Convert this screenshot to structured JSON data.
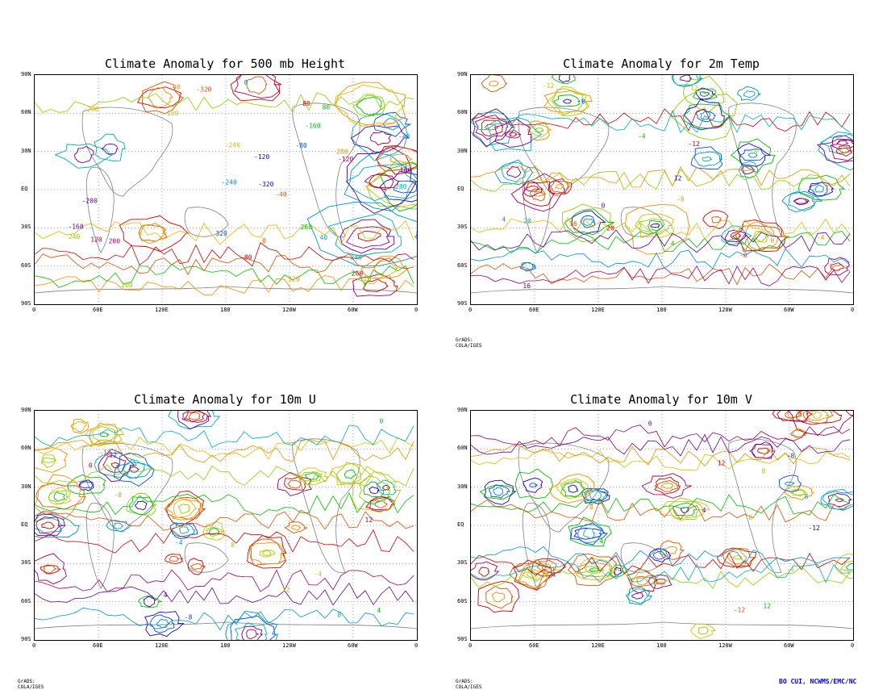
{
  "panels": [
    {
      "title": "Climate Anomaly for 500 mb Height",
      "contour_labels": [
        "80",
        "120",
        "160",
        "40",
        "-40",
        "-80",
        "-120",
        "-160",
        "240",
        "-240",
        "320",
        "-320",
        "260",
        "200",
        "-200",
        "280",
        "0"
      ],
      "palette": [
        "#00c000",
        "#90d000",
        "#d8c000",
        "#f09000",
        "#e05000",
        "#d00000",
        "#a00060",
        "#6000a0",
        "#00b0b0",
        "#0090d0",
        "#0050e0",
        "#2000c0"
      ]
    },
    {
      "title": "Climate Anomaly for 2m Temp",
      "contour_labels": [
        "4",
        "8",
        "12",
        "-4",
        "-8",
        "-12",
        "0",
        "16",
        "20"
      ],
      "palette": [
        "#00c000",
        "#90d000",
        "#d8c000",
        "#f09000",
        "#e05000",
        "#d00000",
        "#a00060",
        "#6000a0",
        "#00b0b0",
        "#0090d0",
        "#0050e0",
        "#2000c0"
      ]
    },
    {
      "title": "Climate Anomaly for 10m U",
      "contour_labels": [
        "4",
        "8",
        "-4",
        "-8",
        "-12",
        "0",
        "12"
      ],
      "palette": [
        "#00c000",
        "#90d000",
        "#d8c000",
        "#f09000",
        "#e05000",
        "#d00000",
        "#a00060",
        "#6000a0",
        "#00b0b0",
        "#0090d0",
        "#0050e0",
        "#2000c0"
      ]
    },
    {
      "title": "Climate Anomaly for 10m V",
      "contour_labels": [
        "4",
        "8",
        "-4",
        "-8",
        "-12",
        "12",
        "0"
      ],
      "palette": [
        "#00c000",
        "#90d000",
        "#d8c000",
        "#f09000",
        "#e05000",
        "#d00000",
        "#a00060",
        "#6000a0",
        "#00b0b0",
        "#0090d0",
        "#0050e0",
        "#2000c0"
      ]
    }
  ],
  "lat_labels": [
    "90N",
    "60N",
    "30N",
    "EQ",
    "30S",
    "60S",
    "90S"
  ],
  "lon_labels": [
    "0",
    "60E",
    "120E",
    "180",
    "120W",
    "60W",
    "0"
  ],
  "credit_text": "GrADS: COLA/IGES",
  "author_credit": "BO CUI, NCWMS/EMC/NC"
}
